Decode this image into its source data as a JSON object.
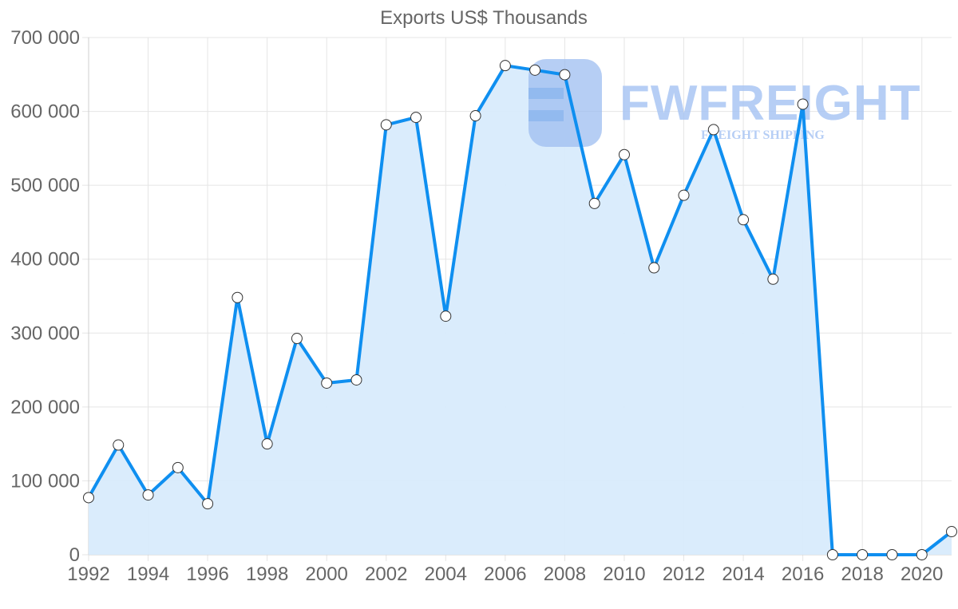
{
  "chart_data": {
    "type": "line",
    "title": "Exports US$ Thousands",
    "xlabel": "",
    "ylabel": "",
    "x": [
      1992,
      1993,
      1994,
      1995,
      1996,
      1997,
      1998,
      1999,
      2000,
      2001,
      2002,
      2003,
      2004,
      2005,
      2006,
      2007,
      2008,
      2009,
      2010,
      2011,
      2012,
      2013,
      2014,
      2015,
      2016,
      2017,
      2018,
      2019,
      2020,
      2021
    ],
    "series": [
      {
        "name": "Exports US$ Thousands",
        "values": [
          77300,
          148500,
          80900,
          117900,
          69000,
          348100,
          150000,
          292700,
          232300,
          236600,
          581800,
          591900,
          322900,
          594100,
          662000,
          655900,
          649700,
          475400,
          541500,
          388300,
          486500,
          575300,
          453400,
          372900,
          609800,
          0,
          0,
          0,
          0,
          31300
        ]
      }
    ],
    "ylim": [
      0,
      700000
    ],
    "yticks": [
      0,
      100000,
      200000,
      300000,
      400000,
      500000,
      600000,
      700000
    ],
    "ytick_labels": [
      "0",
      "100 000",
      "200 000",
      "300 000",
      "400 000",
      "500 000",
      "600 000",
      "700 000"
    ],
    "xtick_labels": [
      "1992",
      "1994",
      "1996",
      "1998",
      "2000",
      "2002",
      "2004",
      "2006",
      "2008",
      "2010",
      "2012",
      "2014",
      "2016",
      "2018",
      "2020"
    ],
    "grid": true,
    "legend": "none",
    "filled_area": true,
    "colors": {
      "line": "#0f8ff0",
      "fill": "#d8ebfc",
      "point_fill": "#ffffff",
      "point_stroke": "#333333"
    }
  },
  "watermark": {
    "brand": "FWFREIGHT",
    "tagline": "FREIGHT SHIPPING"
  }
}
